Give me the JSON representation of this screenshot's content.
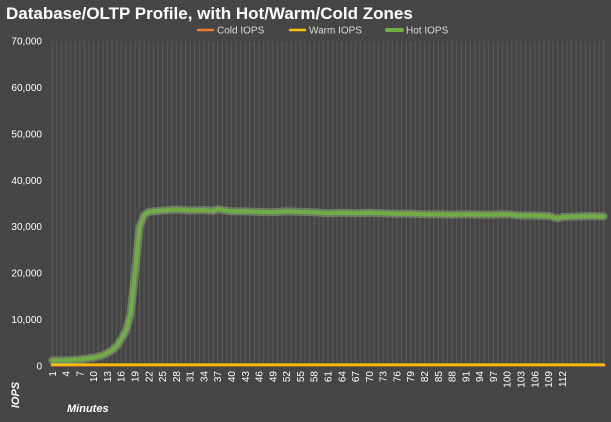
{
  "chart_data": {
    "type": "line",
    "title": "Database/OLTP Profile, with Hot/Warm/Cold Zones",
    "xlabel": "Minutes",
    "ylabel": "IOPS",
    "ylim": [
      0,
      70000
    ],
    "y_ticks": [
      "0",
      "10,000",
      "20,000",
      "30,000",
      "40,000",
      "50,000",
      "60,000",
      "70,000"
    ],
    "x_range": [
      1,
      121
    ],
    "x_tick_labels": [
      1,
      4,
      7,
      10,
      13,
      16,
      19,
      22,
      25,
      28,
      31,
      34,
      37,
      40,
      43,
      46,
      49,
      52,
      55,
      58,
      61,
      64,
      67,
      70,
      73,
      76,
      79,
      82,
      85,
      88,
      91,
      94,
      97,
      100,
      103,
      106,
      109,
      112
    ],
    "grid": "vertical",
    "legend_position": "top",
    "series": [
      {
        "name": "Cold IOPS",
        "color": "#ed7d31",
        "points": [
          [
            1,
            150
          ],
          [
            121,
            150
          ]
        ]
      },
      {
        "name": "Warm IOPS",
        "color": "#ffc000",
        "points": [
          [
            1,
            300
          ],
          [
            121,
            300
          ]
        ]
      },
      {
        "name": "Hot IOPS",
        "color": "#70ad47",
        "points": [
          [
            1,
            1200
          ],
          [
            4,
            1200
          ],
          [
            7,
            1400
          ],
          [
            10,
            1800
          ],
          [
            12,
            2300
          ],
          [
            13,
            2800
          ],
          [
            14,
            3400
          ],
          [
            15,
            4300
          ],
          [
            16,
            5800
          ],
          [
            17,
            7500
          ],
          [
            18,
            11000
          ],
          [
            19,
            20000
          ],
          [
            20,
            30000
          ],
          [
            21,
            32500
          ],
          [
            22,
            33200
          ],
          [
            25,
            33500
          ],
          [
            28,
            33700
          ],
          [
            31,
            33500
          ],
          [
            34,
            33600
          ],
          [
            36,
            33400
          ],
          [
            37,
            33800
          ],
          [
            38,
            33600
          ],
          [
            40,
            33300
          ],
          [
            43,
            33300
          ],
          [
            46,
            33200
          ],
          [
            49,
            33100
          ],
          [
            52,
            33300
          ],
          [
            55,
            33200
          ],
          [
            58,
            33100
          ],
          [
            61,
            32900
          ],
          [
            64,
            33000
          ],
          [
            67,
            32900
          ],
          [
            70,
            33000
          ],
          [
            73,
            32900
          ],
          [
            76,
            32800
          ],
          [
            79,
            32800
          ],
          [
            82,
            32700
          ],
          [
            85,
            32700
          ],
          [
            88,
            32600
          ],
          [
            91,
            32700
          ],
          [
            94,
            32600
          ],
          [
            97,
            32600
          ],
          [
            100,
            32700
          ],
          [
            103,
            32400
          ],
          [
            106,
            32400
          ],
          [
            109,
            32300
          ],
          [
            111,
            31800
          ],
          [
            112,
            32100
          ],
          [
            115,
            32200
          ],
          [
            118,
            32300
          ],
          [
            121,
            32200
          ]
        ]
      }
    ]
  }
}
